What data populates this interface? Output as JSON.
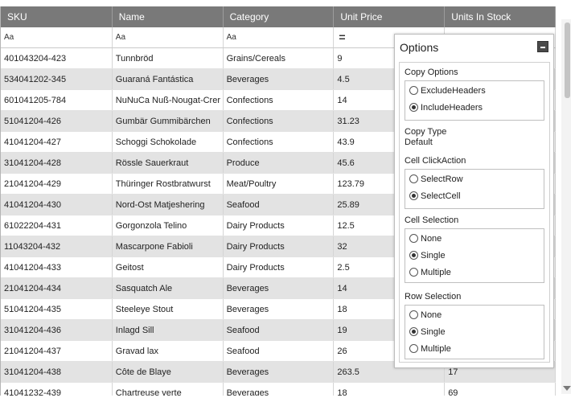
{
  "grid": {
    "columns": [
      "SKU",
      "Name",
      "Category",
      "Unit Price",
      "Units In Stock"
    ],
    "filters": [
      "Aa",
      "Aa",
      "Aa",
      "=",
      ""
    ],
    "rows": [
      [
        "401043204-423",
        "Tunnbröd",
        "Grains/Cereals",
        "9",
        ""
      ],
      [
        "534041202-345",
        "Guaraná Fantástica",
        "Beverages",
        "4.5",
        ""
      ],
      [
        "601041205-784",
        "NuNuCa Nuß-Nougat-Crer",
        "Confections",
        "14",
        ""
      ],
      [
        "51041204-426",
        "Gumbär Gummibärchen",
        "Confections",
        "31.23",
        ""
      ],
      [
        "41041204-427",
        "Schoggi Schokolade",
        "Confections",
        "43.9",
        ""
      ],
      [
        "31041204-428",
        "Rössle Sauerkraut",
        "Produce",
        "45.6",
        ""
      ],
      [
        "21041204-429",
        "Thüringer Rostbratwurst",
        "Meat/Poultry",
        "123.79",
        ""
      ],
      [
        "41041204-430",
        "Nord-Ost Matjeshering",
        "Seafood",
        "25.89",
        ""
      ],
      [
        "61022204-431",
        "Gorgonzola Telino",
        "Dairy Products",
        "12.5",
        ""
      ],
      [
        "11043204-432",
        "Mascarpone Fabioli",
        "Dairy Products",
        "32",
        ""
      ],
      [
        "41041204-433",
        "Geitost",
        "Dairy Products",
        "2.5",
        ""
      ],
      [
        "21041204-434",
        "Sasquatch Ale",
        "Beverages",
        "14",
        ""
      ],
      [
        "51041204-435",
        "Steeleye Stout",
        "Beverages",
        "18",
        ""
      ],
      [
        "31041204-436",
        "Inlagd Sill",
        "Seafood",
        "19",
        ""
      ],
      [
        "21041204-437",
        "Gravad lax",
        "Seafood",
        "26",
        ""
      ],
      [
        "31041204-438",
        "Côte de Blaye",
        "Beverages",
        "263.5",
        "17"
      ],
      [
        "41041232-439",
        "Chartreuse verte",
        "Beverages",
        "18",
        "69"
      ]
    ]
  },
  "options": {
    "title": "Options",
    "copy_options": {
      "label": "Copy Options",
      "items": [
        {
          "label": "ExcludeHeaders",
          "checked": false
        },
        {
          "label": "IncludeHeaders",
          "checked": true
        }
      ]
    },
    "copy_type": {
      "label": "Copy Type",
      "value": "Default"
    },
    "cell_click_action": {
      "label": "Cell ClickAction",
      "items": [
        {
          "label": "SelectRow",
          "checked": false
        },
        {
          "label": "SelectCell",
          "checked": true
        }
      ]
    },
    "cell_selection": {
      "label": "Cell Selection",
      "items": [
        {
          "label": "None",
          "checked": false
        },
        {
          "label": "Single",
          "checked": true
        },
        {
          "label": "Multiple",
          "checked": false
        }
      ]
    },
    "row_selection": {
      "label": "Row Selection",
      "items": [
        {
          "label": "None",
          "checked": false
        },
        {
          "label": "Single",
          "checked": true
        },
        {
          "label": "Multiple",
          "checked": false
        }
      ]
    }
  },
  "colors": {
    "header_bg": "#797979",
    "alt_row_bg": "#e3e3e3",
    "panel_border": "#bdbdbd"
  }
}
